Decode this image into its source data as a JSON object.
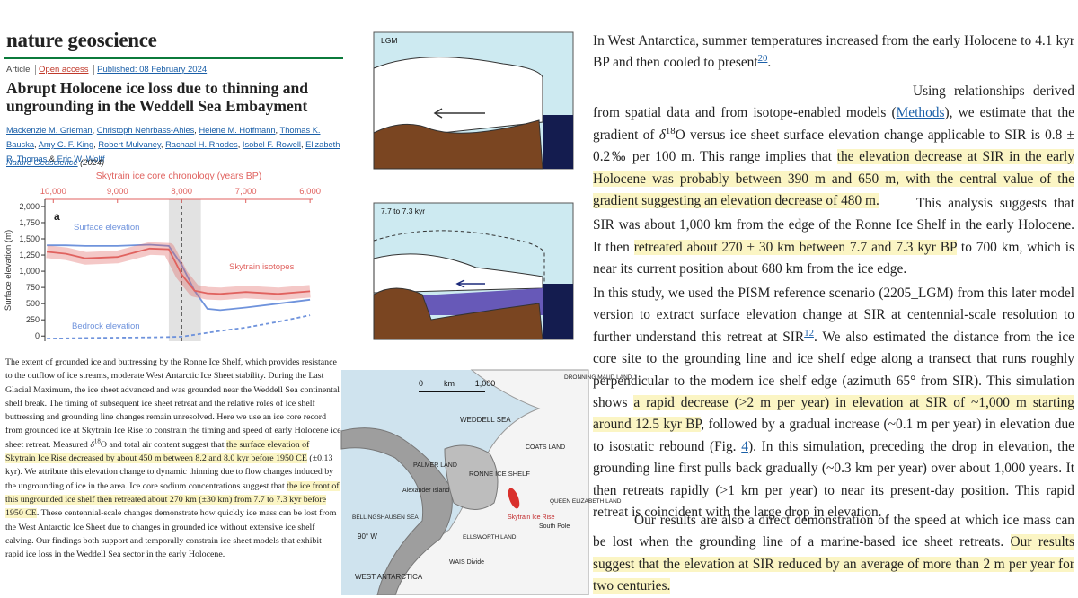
{
  "header": {
    "journal": "nature geoscience",
    "article_type": "Article",
    "access": "Open access",
    "published": "Published: 08 February 2024",
    "title": "Abrupt Holocene ice loss due to thinning and ungrounding in the Weddell Sea Embayment",
    "authors": [
      {
        "link": "Mackenzie M. Grieman"
      },
      ", ",
      {
        "link": "Christoph Nehrbass-Ahles"
      },
      ", ",
      {
        "link": "Helene M. Hoffmann"
      },
      ", ",
      {
        "link": "Thomas K. Bauska"
      },
      ", ",
      {
        "link": "Amy C. F. King"
      },
      ", ",
      {
        "link": "Robert Mulvaney"
      },
      ", ",
      {
        "link": "Rachael H. Rhodes"
      },
      ", ",
      {
        "link": "Isobel F. Rowell"
      },
      ", ",
      {
        "link": "Elizabeth R. Thomas"
      },
      " & ",
      {
        "link": "Eric W. Wolff"
      }
    ],
    "citation": [
      {
        "link": "Nature Geoscience"
      },
      " (2024)"
    ]
  },
  "chart": {
    "type": "line",
    "title": "Skytrain ice core chronology (years BP)",
    "ylabel": "Surface elevation (m)",
    "panel": "a",
    "x": [
      10100,
      9800,
      9500,
      9000,
      8500,
      8200,
      8000,
      7800,
      7600,
      7400,
      7000,
      6500,
      6000
    ],
    "xlim": [
      10130,
      5960
    ],
    "xticks": [
      {
        "value": 10000,
        "label": "10,000"
      },
      {
        "value": 9000,
        "label": "9,000"
      },
      {
        "value": 8000,
        "label": "8,000"
      },
      {
        "value": 7000,
        "label": "7,000"
      },
      {
        "value": 6000,
        "label": "6,000"
      }
    ],
    "ylim": [
      -80,
      2110
    ],
    "yticks": [
      0,
      250,
      500,
      750,
      {
        "value": 1000,
        "label": "1,000"
      },
      {
        "value": 1250,
        "label": "1,250"
      },
      {
        "value": 1500,
        "label": "1,500"
      },
      {
        "value": 1750,
        "label": "1,750"
      },
      {
        "value": 2000,
        "label": "2,000"
      }
    ],
    "shaded": [
      8200,
      7700
    ],
    "marker": 8000,
    "series": [
      {
        "name": "Surface elevation",
        "color": "#6f93dc",
        "values": [
          1400,
          1400,
          1390,
          1390,
          1410,
          1390,
          1100,
          700,
          420,
          400,
          440,
          500,
          560
        ]
      },
      {
        "name": "Skytrain isotopes",
        "color": "#e0625f",
        "values": [
          1300,
          1270,
          1200,
          1220,
          1350,
          1340,
          950,
          700,
          660,
          650,
          680,
          650,
          690
        ]
      },
      {
        "name": "Bedrock elevation",
        "color": "#6f93dc",
        "dashed": true,
        "values": [
          -40,
          -35,
          -30,
          -25,
          -20,
          -15,
          -10,
          20,
          50,
          80,
          130,
          220,
          320
        ]
      }
    ]
  },
  "abstract": [
    "The extent of grounded ice and buttressing by the Ronne Ice Shelf, which provides resistance to the outflow of ice streams, moderate West Antarctic Ice Sheet stability. During the Last Glacial Maximum, the ice sheet advanced and was grounded near the Weddell Sea continental shelf break. The timing of subsequent ice sheet retreat and the relative roles of ice shelf buttressing and grounding line changes remain unresolved. Here we use an ice core record from grounded ice at Skytrain Ice Rise to constrain the timing and speed of early Holocene ice sheet retreat. Measured ",
    {
      "italic": "δ"
    },
    {
      "sup": "18"
    },
    "O and total air content suggest that ",
    {
      "highlight": "the surface elevation of Skytrain Ice Rise decreased by about 450 m between 8.2 and 8.0 kyr before 1950 CE"
    },
    " (±0.13 kyr). We attribute this elevation change to dynamic thinning due to flow changes induced by the ungrounding of ice in the area. Ice core sodium concentrations suggest that ",
    {
      "highlight": "the ice front of this ungrounded ice shelf then retreated about 270 km (±30 km) from 7.7 to 7.3 kyr before 1950 CE"
    },
    ". These centennial-scale changes demonstrate how quickly ice mass can be lost from the West Antarctic Ice Sheet due to changes in grounded ice without extensive ice shelf calving. Our findings both support and temporally constrain ice sheet models that exhibit rapid ice loss in the Weddell Sea sector in the early Holocene."
  ],
  "diagrams": [
    {
      "label": "LGM"
    },
    {
      "label": "7.7 to 7.3 kyr"
    }
  ],
  "map": {
    "scale": [
      "0",
      "km",
      "1,000"
    ],
    "labels": [
      "DRONNING MAUD LAND",
      "WEDDELL SEA",
      "COATS LAND",
      "RONNE ICE SHELF",
      "PALMER LAND",
      "Alexander Island",
      "BELLINGSHAUSEN SEA",
      "QUEEN ELIZABETH LAND",
      "Skytrain Ice Rise",
      "South Pole",
      "90° W",
      "ELLSWORTH LAND",
      "WEST ANTARCTICA",
      "WAIS Divide"
    ]
  },
  "body": [
    [
      "In West Antarctica, summer temperatures increased from the early Holocene to 4.1 kyr BP and then cooled to present",
      {
        "ref": "20"
      },
      "."
    ],
    [
      "Using relationships derived from spatial data and from isotope-enabled models (",
      {
        "link": "Methods"
      },
      "), we estimate that the gradient of ",
      {
        "italic": "δ"
      },
      {
        "sup": "18"
      },
      "O versus ice sheet surface elevation change applicable to SIR is 0.8 ± 0.2‰ per 100 m. This range implies that ",
      {
        "highlight": "the elevation decrease at SIR in the early Holocene was probably between 390 m and 650 m, with the central value of the gradient suggesting an elevation decrease of 480 m."
      }
    ],
    [
      "This analysis suggests that SIR was about 1,000 km from the edge of the Ronne Ice Shelf in the early Holocene. It then ",
      {
        "highlight": "retreated about 270 ± 30 km between 7.7 and 7.3 kyr BP"
      },
      " to 700 km, which is near its current position about 680 km from the ice edge."
    ],
    [
      "In this study, we used the PISM reference scenario (2205_LGM) from this later model version to extract surface elevation change at SIR at centennial-scale resolution to further understand this retreat at SIR",
      {
        "ref": "12"
      },
      ". We also estimated the distance from the ice core site to the grounding line and ice shelf edge along a transect that runs roughly perpendicular to the modern ice shelf edge (azimuth 65° from SIR). This simulation shows ",
      {
        "highlight": "a rapid decrease (>2 m per year) in elevation at SIR of ~1,000 m starting around 12.5 kyr BP"
      },
      ", followed by a gradual increase (~0.1 m per year) in elevation due to isostatic rebound (Fig. ",
      {
        "link": "4"
      },
      "). In this simulation, preceding the drop in elevation, the grounding line first pulls back gradually (~0.3 km per year) over about 1,000 years. It then retreats rapidly (>1 km per year) to near its present-day position. This rapid retreat is coincident with the large drop in elevation."
    ],
    [
      "Our results are also a direct demonstration of the speed at which ice mass can be lost when the grounding line of a marine-based ice sheet retreats. ",
      {
        "highlight": "Our results suggest that the elevation at SIR reduced by an average of more than 2 m per year for two centuries."
      }
    ]
  ]
}
